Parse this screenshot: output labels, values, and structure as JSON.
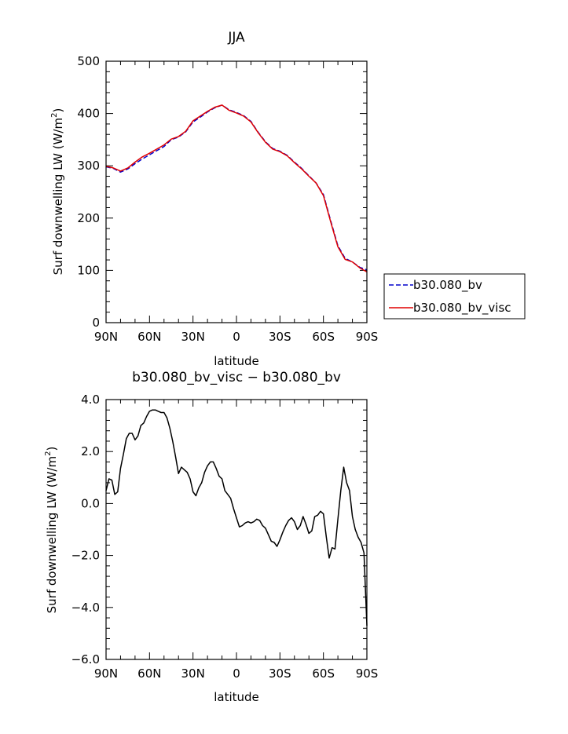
{
  "chart_data": [
    {
      "type": "line",
      "title": "JJA",
      "xlabel": "latitude",
      "ylabel": "Surf downwelling LW (W/m²)",
      "ylabel_parts": [
        "Surf downwelling LW (W/m",
        "2",
        ")"
      ],
      "xticks": [
        {
          "value": 90,
          "label": "90N"
        },
        {
          "value": 60,
          "label": "60N"
        },
        {
          "value": 30,
          "label": "30N"
        },
        {
          "value": 0,
          "label": "0"
        },
        {
          "value": -30,
          "label": "30S"
        },
        {
          "value": -60,
          "label": "60S"
        },
        {
          "value": -90,
          "label": "90S"
        }
      ],
      "xlim": [
        90,
        -90
      ],
      "ylim": [
        0,
        500
      ],
      "yticks": [
        {
          "value": 0,
          "label": "0"
        },
        {
          "value": 100,
          "label": "100"
        },
        {
          "value": 200,
          "label": "200"
        },
        {
          "value": 300,
          "label": "300"
        },
        {
          "value": 400,
          "label": "400"
        },
        {
          "value": 500,
          "label": "500"
        }
      ],
      "legend": "right",
      "series": [
        {
          "name": "b30.080_bv",
          "color": "#0000cc",
          "style": "dashed",
          "x": [
            90,
            85,
            80,
            75,
            70,
            65,
            60,
            55,
            50,
            45,
            40,
            35,
            30,
            25,
            20,
            15,
            10,
            5,
            0,
            -5,
            -10,
            -15,
            -20,
            -25,
            -30,
            -35,
            -40,
            -45,
            -50,
            -55,
            -60,
            -65,
            -70,
            -75,
            -80,
            -85,
            -90
          ],
          "values": [
            298,
            295,
            288,
            294,
            304,
            313,
            321,
            329,
            337,
            350,
            355,
            365,
            384,
            393,
            403,
            411,
            416,
            407,
            402,
            396,
            385,
            364,
            346,
            333,
            328,
            320,
            307,
            295,
            281,
            267,
            245,
            195,
            147,
            123,
            116,
            106,
            101
          ]
        },
        {
          "name": "b30.080_bv_visc",
          "color": "#e00000",
          "style": "solid",
          "x": [
            90,
            85,
            80,
            75,
            70,
            65,
            60,
            55,
            50,
            45,
            40,
            35,
            30,
            25,
            20,
            15,
            10,
            5,
            0,
            -5,
            -10,
            -15,
            -20,
            -25,
            -30,
            -35,
            -40,
            -45,
            -50,
            -55,
            -60,
            -65,
            -70,
            -75,
            -80,
            -85,
            -90
          ],
          "values": [
            299,
            296,
            290,
            296,
            307,
            317,
            324,
            332,
            340,
            351,
            356,
            366,
            386,
            395,
            404,
            412,
            416,
            406,
            401,
            395,
            384,
            363,
            345,
            332,
            327,
            319,
            306,
            294,
            280,
            267,
            243,
            193,
            145,
            121,
            116,
            105,
            97
          ]
        }
      ]
    },
    {
      "type": "line",
      "title": "b30.080_bv_visc − b30.080_bv",
      "xlabel": "latitude",
      "ylabel": "Surf downwelling LW (W/m²)",
      "ylabel_parts": [
        "Surf downwelling LW (W/m",
        "2",
        ")"
      ],
      "xticks": [
        {
          "value": 90,
          "label": "90N"
        },
        {
          "value": 60,
          "label": "60N"
        },
        {
          "value": 30,
          "label": "30N"
        },
        {
          "value": 0,
          "label": "0"
        },
        {
          "value": -30,
          "label": "30S"
        },
        {
          "value": -60,
          "label": "60S"
        },
        {
          "value": -90,
          "label": "90S"
        }
      ],
      "xlim": [
        90,
        -90
      ],
      "ylim": [
        -6,
        4
      ],
      "yticks": [
        {
          "value": -6,
          "label": "−6.0"
        },
        {
          "value": -4,
          "label": "−4.0"
        },
        {
          "value": -2,
          "label": "−2.0"
        },
        {
          "value": 0,
          "label": "0.0"
        },
        {
          "value": 2,
          "label": "2.0"
        },
        {
          "value": 4,
          "label": "4.0"
        }
      ],
      "series": [
        {
          "color": "#000000",
          "style": "solid",
          "x": [
            90,
            88,
            86,
            84,
            82,
            80,
            78,
            76,
            74,
            72,
            70,
            68,
            66,
            64,
            62,
            60,
            58,
            56,
            54,
            52,
            50,
            48,
            46,
            44,
            42,
            40,
            38,
            36,
            34,
            32,
            30,
            28,
            26,
            24,
            22,
            20,
            18,
            16,
            14,
            12,
            10,
            8,
            6,
            4,
            2,
            0,
            -2,
            -4,
            -6,
            -8,
            -10,
            -12,
            -14,
            -16,
            -18,
            -20,
            -22,
            -24,
            -26,
            -28,
            -30,
            -32,
            -34,
            -36,
            -38,
            -40,
            -42,
            -44,
            -46,
            -48,
            -50,
            -52,
            -54,
            -56,
            -58,
            -60,
            -62,
            -64,
            -66,
            -68,
            -70,
            -72,
            -74,
            -76,
            -78,
            -80,
            -82,
            -84,
            -86,
            -88,
            -90
          ],
          "values": [
            0.5,
            0.95,
            0.9,
            0.35,
            0.45,
            1.35,
            1.9,
            2.5,
            2.7,
            2.7,
            2.45,
            2.6,
            3.0,
            3.1,
            3.35,
            3.55,
            3.6,
            3.6,
            3.55,
            3.5,
            3.5,
            3.3,
            2.9,
            2.4,
            1.8,
            1.15,
            1.4,
            1.3,
            1.2,
            0.95,
            0.45,
            0.3,
            0.6,
            0.8,
            1.2,
            1.45,
            1.6,
            1.6,
            1.35,
            1.05,
            0.95,
            0.5,
            0.35,
            0.2,
            -0.2,
            -0.55,
            -0.9,
            -0.85,
            -0.75,
            -0.7,
            -0.75,
            -0.7,
            -0.6,
            -0.65,
            -0.85,
            -0.95,
            -1.2,
            -1.45,
            -1.5,
            -1.65,
            -1.4,
            -1.1,
            -0.85,
            -0.65,
            -0.55,
            -0.7,
            -1.0,
            -0.85,
            -0.5,
            -0.8,
            -1.15,
            -1.05,
            -0.5,
            -0.45,
            -0.3,
            -0.4,
            -1.3,
            -2.1,
            -1.7,
            -1.75,
            -0.6,
            0.5,
            1.4,
            0.8,
            0.5,
            -0.5,
            -1.0,
            -1.3,
            -1.5,
            -1.9,
            -4.7
          ]
        }
      ]
    }
  ]
}
